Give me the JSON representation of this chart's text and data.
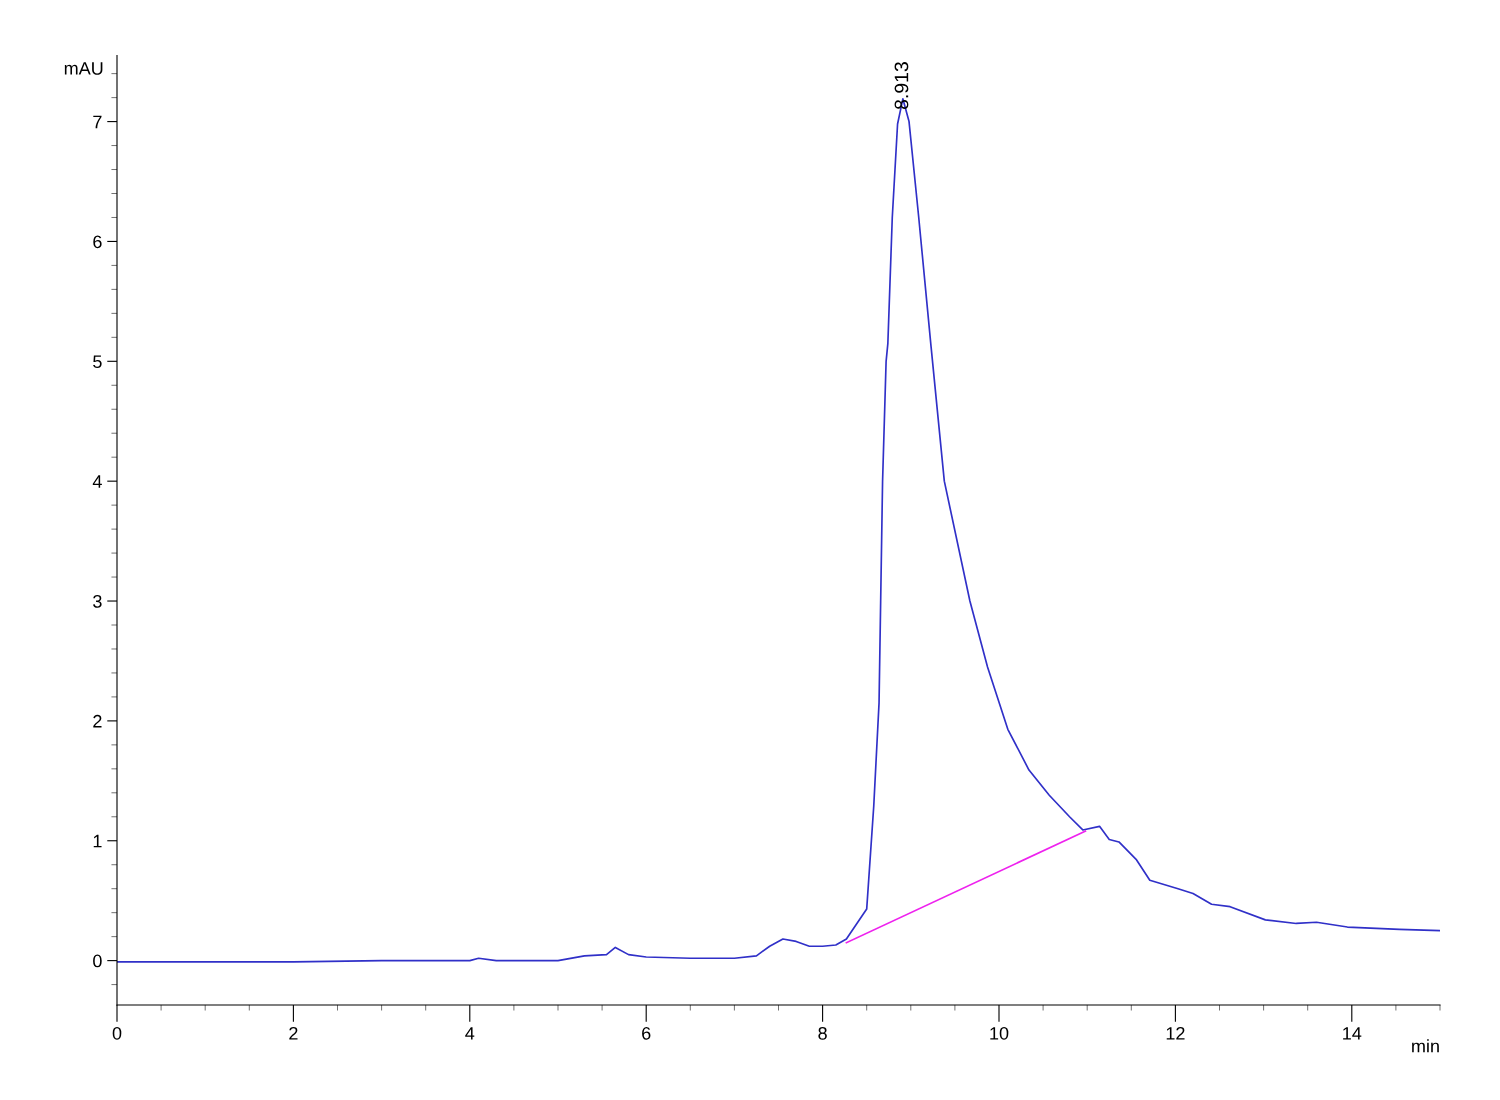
{
  "chart_data": {
    "type": "line",
    "xlabel": "min",
    "ylabel": "mAU",
    "xlim": [
      0,
      15
    ],
    "ylim": [
      -0.37,
      7.55
    ],
    "xticks": [
      0,
      2,
      4,
      6,
      8,
      10,
      12,
      14
    ],
    "yticks": [
      0,
      1,
      2,
      3,
      4,
      5,
      6,
      7
    ],
    "grid": false,
    "legend": false,
    "marker": "none",
    "line_style": "solid",
    "series": [
      {
        "color": "#3030c8",
        "x": [
          0,
          1,
          2,
          3,
          4,
          4.1,
          4.3,
          5.0,
          5.3,
          5.55,
          5.65,
          5.8,
          6.0,
          6.5,
          7.0,
          7.25,
          7.4,
          7.55,
          7.7,
          7.85,
          8.0,
          8.15,
          8.27,
          8.5,
          8.58,
          8.64,
          8.68,
          8.72,
          8.74,
          8.79,
          8.85,
          8.91,
          8.98,
          9.09,
          9.23,
          9.38,
          9.67,
          9.87,
          10.1,
          10.34,
          10.57,
          10.8,
          10.95,
          11.14,
          11.25,
          11.36,
          11.56,
          11.71,
          12.03,
          12.2,
          12.41,
          12.62,
          13.02,
          13.37,
          13.6,
          13.95,
          14.54,
          15.0
        ],
        "values": [
          -0.01,
          -0.01,
          -0.01,
          0.0,
          0.0,
          0.02,
          0.0,
          0.0,
          0.04,
          0.05,
          0.11,
          0.05,
          0.03,
          0.02,
          0.02,
          0.04,
          0.12,
          0.18,
          0.16,
          0.12,
          0.12,
          0.13,
          0.18,
          0.43,
          1.29,
          2.15,
          4.0,
          5.0,
          5.15,
          6.2,
          6.98,
          7.19,
          7.0,
          6.2,
          5.12,
          4.0,
          3.0,
          2.45,
          1.93,
          1.59,
          1.38,
          1.2,
          1.09,
          1.12,
          1.01,
          0.99,
          0.84,
          0.67,
          0.6,
          0.56,
          0.47,
          0.45,
          0.34,
          0.31,
          0.32,
          0.28,
          0.26,
          0.25
        ]
      },
      {
        "color": "#ee22ee",
        "x": [
          8.27,
          10.98
        ],
        "values": [
          0.15,
          1.08
        ]
      }
    ],
    "annotations": [
      {
        "text": "8.913",
        "x": 8.913,
        "y": 7.19
      }
    ]
  }
}
